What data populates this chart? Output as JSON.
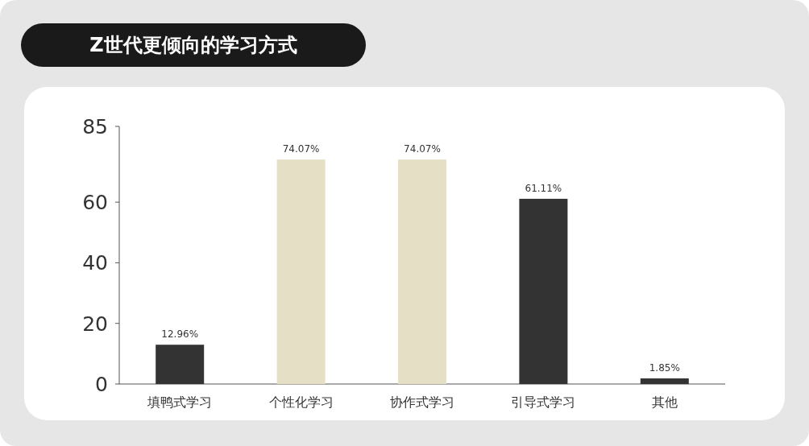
{
  "chart_data": {
    "type": "bar",
    "title": "Z世代更倾向的学习方式",
    "categories": [
      "填鸭式学习",
      "个性化学习",
      "协作式学习",
      "引导式学习",
      "其他"
    ],
    "values": [
      12.96,
      74.07,
      74.07,
      61.11,
      1.85
    ],
    "colors": [
      "#333333",
      "#e5dfc6",
      "#e5dfc6",
      "#333333",
      "#333333"
    ],
    "value_labels": [
      "12.96%",
      "74.07%",
      "74.07%",
      "61.11%",
      "1.85%"
    ],
    "ylim": [
      0,
      85
    ],
    "yticks": [
      0,
      20,
      40,
      60,
      85
    ]
  }
}
